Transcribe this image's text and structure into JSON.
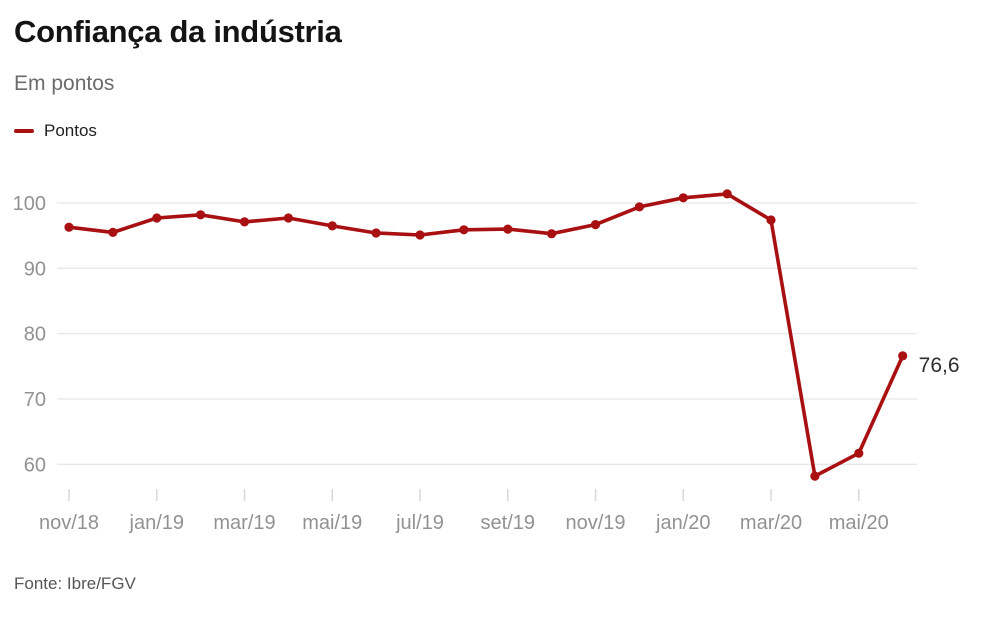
{
  "header": {
    "title": "Confiança da indústria",
    "subtitle": "Em pontos",
    "legend_label": "Pontos"
  },
  "footer": {
    "source": "Fonte: Ibre/FGV"
  },
  "colors": {
    "line": "#a81012",
    "grid": "#e7e7e7",
    "tick": "#d9d9d9",
    "axis_label": "#929292",
    "annotation": "#2e2e2e"
  },
  "chart_data": {
    "type": "line",
    "title": "Confiança da indústria",
    "subtitle": "Em pontos",
    "categories": [
      "nov/18",
      "dez/18",
      "jan/19",
      "fev/19",
      "mar/19",
      "abr/19",
      "mai/19",
      "jun/19",
      "jul/19",
      "ago/19",
      "set/19",
      "out/19",
      "nov/19",
      "dez/19",
      "jan/20",
      "fev/20",
      "mar/20",
      "abr/20",
      "mai/20",
      "jun/20"
    ],
    "series": [
      {
        "name": "Pontos",
        "color": "#a81012",
        "values": [
          96.3,
          95.5,
          97.7,
          98.2,
          97.1,
          97.7,
          96.5,
          95.4,
          95.1,
          95.9,
          96.0,
          95.3,
          96.7,
          99.4,
          100.8,
          101.4,
          97.4,
          58.2,
          61.7,
          76.6
        ]
      }
    ],
    "x_tick_labels": [
      "nov/18",
      "jan/19",
      "mar/19",
      "mai/19",
      "jul/19",
      "set/19",
      "nov/19",
      "jan/20",
      "mar/20",
      "mai/20"
    ],
    "y_ticks": [
      60,
      70,
      80,
      90,
      100
    ],
    "ylim": [
      55,
      103
    ],
    "grid": "horizontal",
    "legend_position": "top-left",
    "last_point_label": "76,6"
  }
}
